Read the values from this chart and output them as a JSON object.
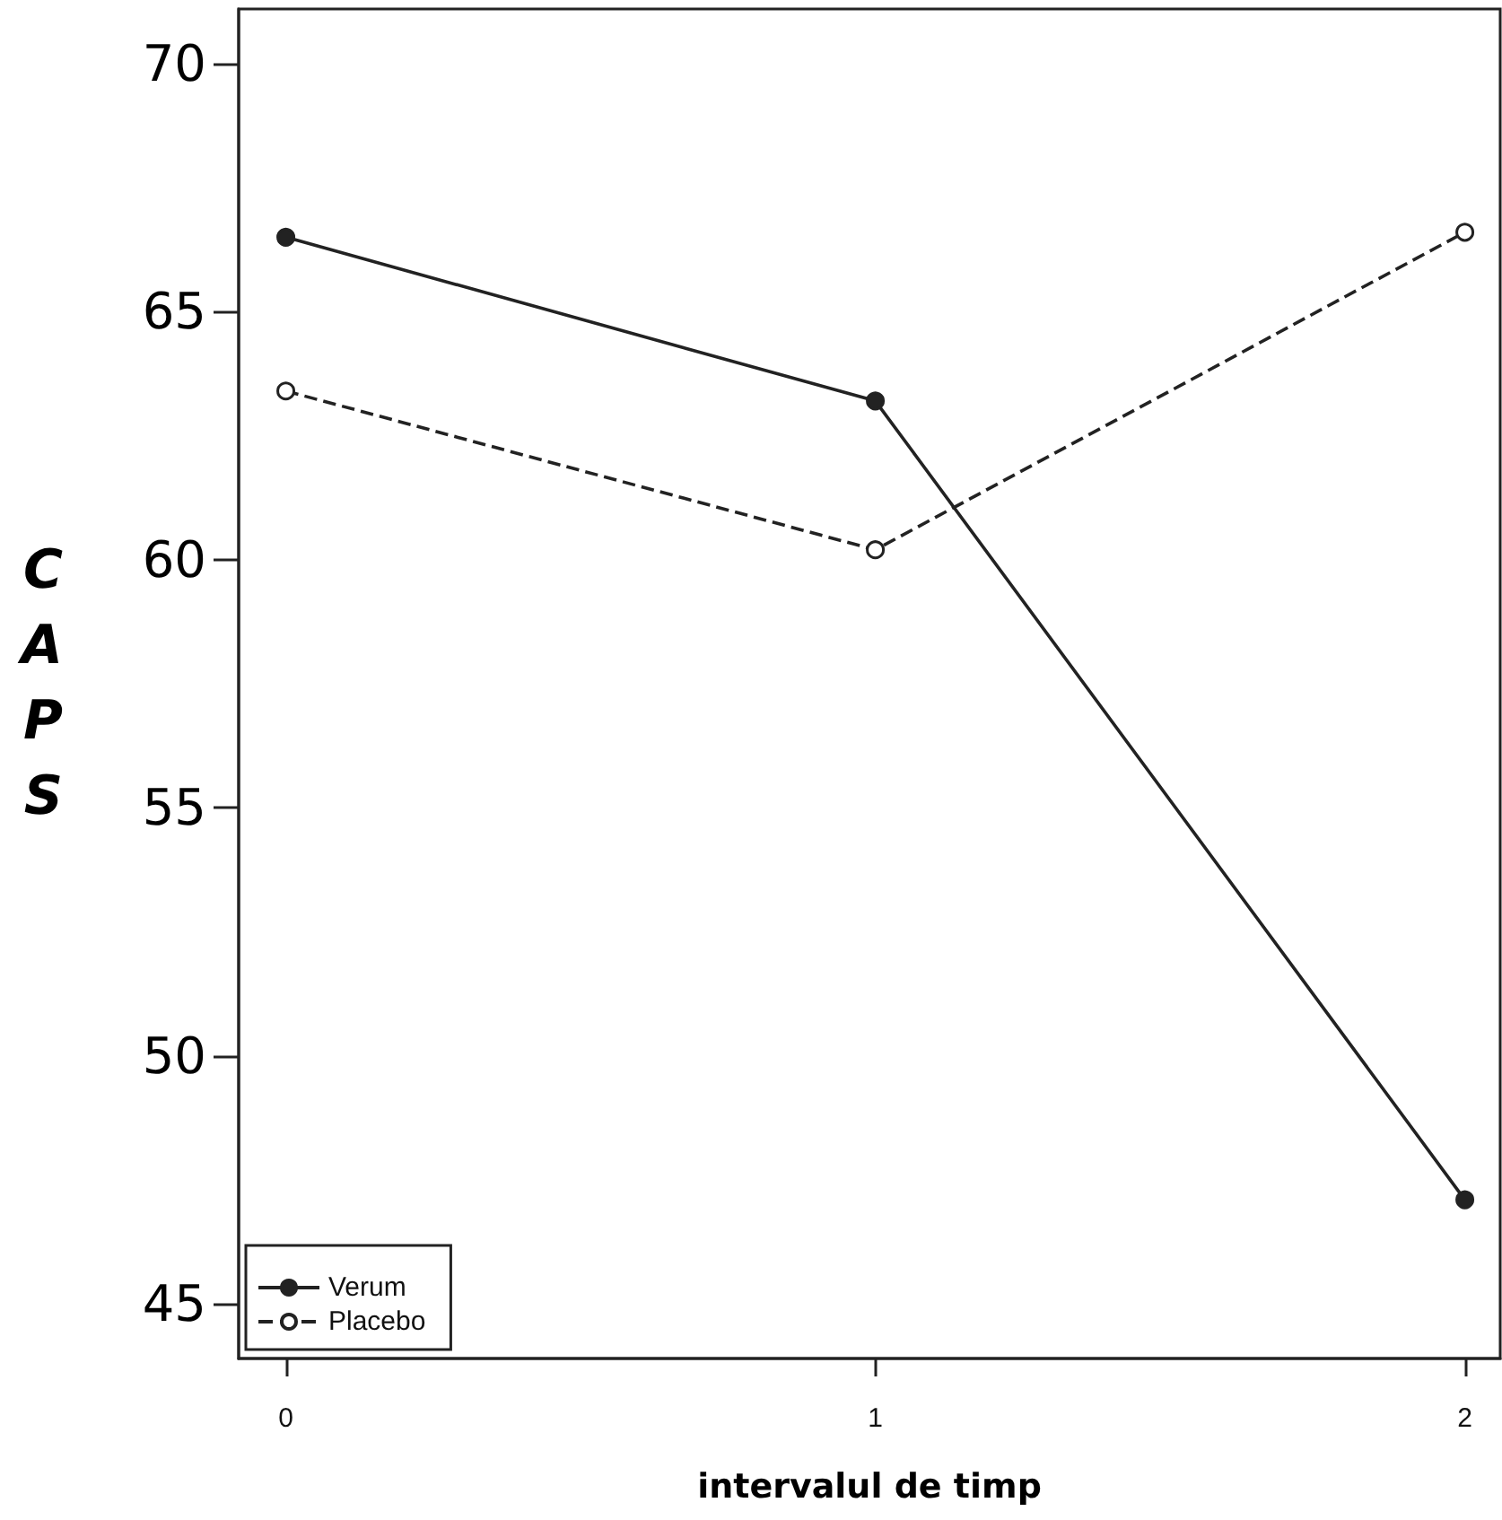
{
  "chart_data": {
    "type": "line",
    "xlabel": "intervalul de timp",
    "ylabel": "CAPS",
    "x": [
      0,
      1,
      2
    ],
    "series": [
      {
        "name": "Verum",
        "color": "#222222",
        "values": [
          66.5,
          63.2,
          47.1
        ],
        "line_style": "solid"
      },
      {
        "name": "Placebo",
        "color": "#222222",
        "values": [
          63.4,
          60.2,
          66.6
        ],
        "line_style": "dashed"
      }
    ],
    "xlim": [
      -0.08,
      2.06
    ],
    "xticks": [
      0,
      1,
      2
    ],
    "ylim": [
      43.9,
      71.1
    ],
    "yticks": [
      45,
      50,
      55,
      60,
      65,
      70
    ],
    "grid": false,
    "legend": "bottom left",
    "marker": "circle"
  }
}
